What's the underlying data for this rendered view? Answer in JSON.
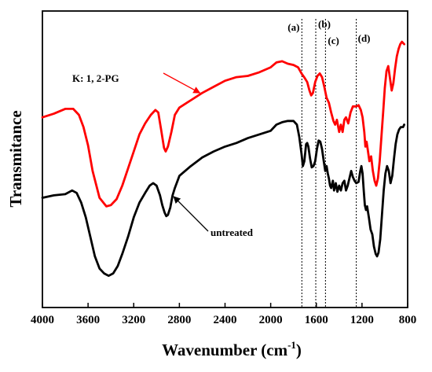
{
  "chart_data": {
    "type": "line",
    "title": "",
    "xlabel": "Wavenumber (cm",
    "xlabel_sup": "-1",
    "xlabel_close": ")",
    "ylabel": "Transmitance",
    "xlim": [
      4000,
      800
    ],
    "x_reversed": true,
    "ylim": [
      0,
      100
    ],
    "y_ticks_shown": false,
    "grid": false,
    "x_ticks": [
      4000,
      3600,
      3200,
      2800,
      2400,
      2000,
      1600,
      1200,
      800
    ],
    "x_tick_labels": [
      "4000",
      "3600",
      "3200",
      "2800",
      "2400",
      "2000",
      "1600",
      "1200",
      "800"
    ],
    "series": [
      {
        "name": "K: 1, 2-PG",
        "color": "#ff0000",
        "points": [
          [
            4000,
            68
          ],
          [
            3900,
            69.5
          ],
          [
            3800,
            71.5
          ],
          [
            3730,
            71.5
          ],
          [
            3680,
            69
          ],
          [
            3640,
            64
          ],
          [
            3600,
            56.5
          ],
          [
            3560,
            46
          ],
          [
            3500,
            35
          ],
          [
            3440,
            31.5
          ],
          [
            3400,
            32
          ],
          [
            3350,
            34.5
          ],
          [
            3300,
            40
          ],
          [
            3250,
            47
          ],
          [
            3200,
            54
          ],
          [
            3150,
            61
          ],
          [
            3100,
            65.5
          ],
          [
            3050,
            69
          ],
          [
            3010,
            71
          ],
          [
            2985,
            70
          ],
          [
            2960,
            63
          ],
          [
            2935,
            55.5
          ],
          [
            2920,
            54
          ],
          [
            2900,
            56
          ],
          [
            2870,
            62
          ],
          [
            2840,
            69
          ],
          [
            2800,
            72
          ],
          [
            2700,
            75
          ],
          [
            2600,
            78
          ],
          [
            2500,
            80.5
          ],
          [
            2400,
            83
          ],
          [
            2300,
            84.5
          ],
          [
            2200,
            85
          ],
          [
            2100,
            86.5
          ],
          [
            2000,
            88.5
          ],
          [
            1950,
            90.5
          ],
          [
            1900,
            91
          ],
          [
            1850,
            90
          ],
          [
            1800,
            89.5
          ],
          [
            1760,
            88.5
          ],
          [
            1730,
            86
          ],
          [
            1700,
            84
          ],
          [
            1680,
            82.5
          ],
          [
            1660,
            79
          ],
          [
            1645,
            77
          ],
          [
            1630,
            78
          ],
          [
            1610,
            82.5
          ],
          [
            1590,
            85
          ],
          [
            1570,
            86
          ],
          [
            1550,
            84.5
          ],
          [
            1530,
            80.5
          ],
          [
            1510,
            76
          ],
          [
            1490,
            74
          ],
          [
            1470,
            70
          ],
          [
            1450,
            66.5
          ],
          [
            1435,
            65
          ],
          [
            1420,
            67
          ],
          [
            1400,
            62
          ],
          [
            1385,
            65
          ],
          [
            1370,
            62
          ],
          [
            1355,
            67
          ],
          [
            1340,
            68
          ],
          [
            1320,
            65.5
          ],
          [
            1300,
            70
          ],
          [
            1280,
            72.5
          ],
          [
            1250,
            72.5
          ],
          [
            1230,
            73
          ],
          [
            1210,
            71
          ],
          [
            1195,
            68
          ],
          [
            1180,
            62
          ],
          [
            1170,
            56
          ],
          [
            1160,
            58
          ],
          [
            1150,
            55
          ],
          [
            1135,
            50
          ],
          [
            1120,
            52
          ],
          [
            1105,
            46
          ],
          [
            1090,
            42
          ],
          [
            1075,
            40
          ],
          [
            1060,
            43
          ],
          [
            1045,
            50
          ],
          [
            1030,
            60
          ],
          [
            1015,
            70
          ],
          [
            1000,
            80
          ],
          [
            985,
            87
          ],
          [
            970,
            89
          ],
          [
            955,
            84
          ],
          [
            940,
            79
          ],
          [
            925,
            82
          ],
          [
            910,
            88
          ],
          [
            895,
            93
          ],
          [
            880,
            96
          ],
          [
            865,
            98
          ],
          [
            850,
            99
          ],
          [
            830,
            98
          ]
        ]
      },
      {
        "name": "untreated",
        "color": "#000000",
        "points": [
          [
            4000,
            35
          ],
          [
            3900,
            36
          ],
          [
            3800,
            36.5
          ],
          [
            3740,
            38
          ],
          [
            3700,
            37
          ],
          [
            3660,
            33
          ],
          [
            3620,
            27
          ],
          [
            3580,
            19
          ],
          [
            3540,
            11
          ],
          [
            3500,
            6
          ],
          [
            3460,
            4
          ],
          [
            3420,
            3
          ],
          [
            3380,
            4
          ],
          [
            3340,
            7
          ],
          [
            3300,
            12
          ],
          [
            3250,
            19
          ],
          [
            3200,
            27
          ],
          [
            3150,
            33
          ],
          [
            3100,
            37
          ],
          [
            3060,
            40
          ],
          [
            3030,
            41
          ],
          [
            3000,
            40
          ],
          [
            2970,
            36
          ],
          [
            2950,
            32
          ],
          [
            2930,
            29
          ],
          [
            2915,
            27.5
          ],
          [
            2900,
            28
          ],
          [
            2880,
            31
          ],
          [
            2860,
            36
          ],
          [
            2840,
            39
          ],
          [
            2800,
            44
          ],
          [
            2700,
            48
          ],
          [
            2600,
            51.5
          ],
          [
            2500,
            54
          ],
          [
            2400,
            56
          ],
          [
            2300,
            57.5
          ],
          [
            2200,
            59.5
          ],
          [
            2100,
            61
          ],
          [
            2000,
            62.5
          ],
          [
            1950,
            65
          ],
          [
            1900,
            66
          ],
          [
            1850,
            66.5
          ],
          [
            1800,
            66.5
          ],
          [
            1770,
            65
          ],
          [
            1750,
            60
          ],
          [
            1730,
            53
          ],
          [
            1718,
            48
          ],
          [
            1705,
            50
          ],
          [
            1690,
            57
          ],
          [
            1680,
            57.5
          ],
          [
            1670,
            56
          ],
          [
            1655,
            51
          ],
          [
            1640,
            47.5
          ],
          [
            1625,
            48
          ],
          [
            1610,
            50
          ],
          [
            1595,
            55
          ],
          [
            1580,
            58.5
          ],
          [
            1565,
            58
          ],
          [
            1550,
            55
          ],
          [
            1535,
            50
          ],
          [
            1522,
            46
          ],
          [
            1510,
            48
          ],
          [
            1500,
            45
          ],
          [
            1490,
            43
          ],
          [
            1480,
            40
          ],
          [
            1470,
            39
          ],
          [
            1455,
            42
          ],
          [
            1445,
            38
          ],
          [
            1430,
            41
          ],
          [
            1415,
            37.5
          ],
          [
            1400,
            40
          ],
          [
            1385,
            38
          ],
          [
            1370,
            41
          ],
          [
            1355,
            42
          ],
          [
            1340,
            38
          ],
          [
            1325,
            40
          ],
          [
            1310,
            43
          ],
          [
            1295,
            46
          ],
          [
            1280,
            43.5
          ],
          [
            1265,
            42
          ],
          [
            1250,
            41
          ],
          [
            1230,
            41.5
          ],
          [
            1215,
            46
          ],
          [
            1205,
            48
          ],
          [
            1195,
            45
          ],
          [
            1185,
            38
          ],
          [
            1175,
            32
          ],
          [
            1165,
            30
          ],
          [
            1155,
            31.5
          ],
          [
            1140,
            27
          ],
          [
            1125,
            22
          ],
          [
            1110,
            20
          ],
          [
            1095,
            15
          ],
          [
            1080,
            12
          ],
          [
            1068,
            11
          ],
          [
            1055,
            12.5
          ],
          [
            1040,
            18
          ],
          [
            1025,
            28
          ],
          [
            1010,
            38
          ],
          [
            995,
            45
          ],
          [
            980,
            48
          ],
          [
            965,
            46
          ],
          [
            950,
            41
          ],
          [
            935,
            44
          ],
          [
            920,
            51
          ],
          [
            905,
            57
          ],
          [
            890,
            61
          ],
          [
            875,
            63
          ],
          [
            860,
            64
          ],
          [
            840,
            64
          ],
          [
            830,
            65
          ]
        ]
      }
    ],
    "vertical_markers": [
      {
        "x": 1727,
        "label": "(a)"
      },
      {
        "x": 1605,
        "label": "(b)"
      },
      {
        "x": 1520,
        "label": "(c)"
      },
      {
        "x": 1250,
        "label": "(d)"
      }
    ],
    "annotations": [
      {
        "text": "K: 1, 2-PG",
        "target_series": "K: 1, 2-PG",
        "arrow_x": 2620,
        "arrow_y": 78
      },
      {
        "text": "untreated",
        "target_series": "untreated",
        "arrow_x": 2850,
        "arrow_y": 35.5
      }
    ]
  }
}
